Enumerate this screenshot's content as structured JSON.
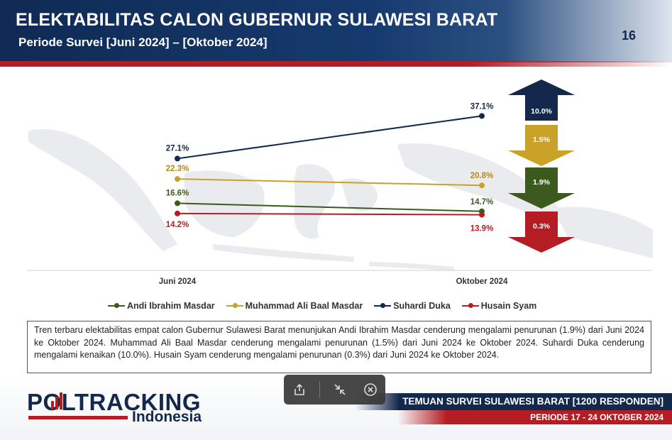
{
  "header": {
    "title": "ELEKTABILITAS CALON GUBERNUR SULAWESI BARAT",
    "subtitle": "Periode Survei [Juni 2024] – [Oktober 2024]",
    "page_number": "16"
  },
  "colors": {
    "navy": "#14284b",
    "red": "#b51d25",
    "gold": "#c9a227",
    "green": "#3d5a1e"
  },
  "chart_data": {
    "type": "line",
    "categories": [
      "Juni 2024",
      "Oktober 2024"
    ],
    "series": [
      {
        "name": "Andi Ibrahim Masdar",
        "color": "#3d5a1e",
        "values": [
          16.6,
          14.7
        ],
        "labels": [
          "16.6%",
          "14.7%"
        ],
        "change": "1.9%",
        "direction": "down"
      },
      {
        "name": "Muhammad Ali Baal Masdar",
        "color": "#c9a227",
        "values": [
          22.3,
          20.8
        ],
        "labels": [
          "22.3%",
          "20.8%"
        ],
        "change": "1.5%",
        "direction": "down"
      },
      {
        "name": "Suhardi Duka",
        "color": "#14284b",
        "values": [
          27.1,
          37.1
        ],
        "labels": [
          "27.1%",
          "37.1%"
        ],
        "change": "10.0%",
        "direction": "up"
      },
      {
        "name": "Husain Syam",
        "color": "#b51d25",
        "values": [
          14.2,
          13.9
        ],
        "labels": [
          "14.2%",
          "13.9%"
        ],
        "change": "0.3%",
        "direction": "down"
      }
    ],
    "arrow_order": [
      2,
      1,
      0,
      3
    ],
    "ylim": [
      10,
      40
    ],
    "legend_position": "bottom",
    "grid": false
  },
  "summary": {
    "text": "Tren terbaru elektabilitas empat calon Gubernur Sulawesi Barat menunjukan Andi Ibrahim Masdar cenderung mengalami penurunan (1.9%) dari Juni 2024 ke Oktober 2024. Muhammad Ali Baal Masdar cenderung mengalami penurunan (1.5%) dari Juni 2024 ke Oktober 2024. Suhardi Duka cenderung mengalami kenaikan (10.0%). Husain Syam cenderung mengalami penurunan (0.3%) dari Juni 2024 ke Oktober 2024."
  },
  "footer": {
    "logo_main": "POLTRACKING",
    "logo_sub": "Indonesia",
    "survey_title": "TEMUAN SURVEI SULAWESI BARAT [1200 RESPONDEN]",
    "period": "PERIODE 17 - 24 OKTOBER 2024"
  },
  "toolbar": {
    "share_icon": "share-icon",
    "shrink_icon": "shrink-icon",
    "close_icon": "close-circle-icon"
  }
}
